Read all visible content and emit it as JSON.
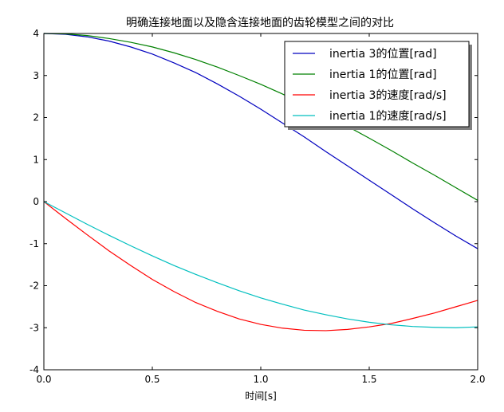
{
  "chart_data": {
    "type": "line",
    "title": "明确连接地面以及隐含连接地面的齿轮模型之间的对比",
    "xlabel": "时间[s]",
    "ylabel": "",
    "xlim": [
      0.0,
      2.0
    ],
    "ylim": [
      -4,
      4
    ],
    "xticks": [
      0.0,
      0.5,
      1.0,
      1.5,
      2.0
    ],
    "xtick_labels": [
      "0.0",
      "0.5",
      "1.0",
      "1.5",
      "2.0"
    ],
    "yticks": [
      -4,
      -3,
      -2,
      -1,
      0,
      1,
      2,
      3,
      4
    ],
    "ytick_labels": [
      "-4",
      "-3",
      "-2",
      "-1",
      "0",
      "1",
      "2",
      "3",
      "4"
    ],
    "grid": false,
    "legend_position": "top-right",
    "x": [
      0.0,
      0.1,
      0.2,
      0.3,
      0.4,
      0.5,
      0.6,
      0.7,
      0.8,
      0.9,
      1.0,
      1.1,
      1.2,
      1.3,
      1.4,
      1.5,
      1.6,
      1.7,
      1.8,
      1.9,
      2.0
    ],
    "series": [
      {
        "name": "inertia 3的位置[rad]",
        "color": "#0000bf",
        "values": [
          4.0,
          3.98,
          3.92,
          3.82,
          3.68,
          3.51,
          3.3,
          3.07,
          2.8,
          2.51,
          2.2,
          1.87,
          1.54,
          1.19,
          0.85,
          0.51,
          0.17,
          -0.17,
          -0.5,
          -0.82,
          -1.12
        ]
      },
      {
        "name": "inertia 1的位置[rad]",
        "color": "#008000",
        "values": [
          4.0,
          3.99,
          3.95,
          3.88,
          3.79,
          3.68,
          3.54,
          3.38,
          3.2,
          3.0,
          2.79,
          2.56,
          2.31,
          2.06,
          1.79,
          1.51,
          1.22,
          0.92,
          0.63,
          0.33,
          0.03
        ]
      },
      {
        "name": "inertia 3的速度[rad/s]",
        "color": "#ff0000",
        "values": [
          0.0,
          -0.4,
          -0.79,
          -1.17,
          -1.52,
          -1.85,
          -2.14,
          -2.4,
          -2.61,
          -2.79,
          -2.92,
          -3.01,
          -3.06,
          -3.07,
          -3.04,
          -2.98,
          -2.9,
          -2.78,
          -2.65,
          -2.5,
          -2.35
        ]
      },
      {
        "name": "inertia 1的速度[rad/s]",
        "color": "#00bfbf",
        "values": [
          0.0,
          -0.27,
          -0.54,
          -0.8,
          -1.05,
          -1.29,
          -1.52,
          -1.73,
          -1.93,
          -2.12,
          -2.29,
          -2.44,
          -2.58,
          -2.69,
          -2.79,
          -2.87,
          -2.93,
          -2.97,
          -2.99,
          -3.0,
          -2.98
        ]
      }
    ]
  }
}
